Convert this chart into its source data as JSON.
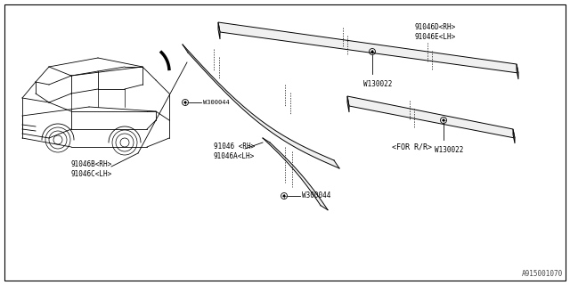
{
  "background_color": "#ffffff",
  "border_color": "#000000",
  "labels": {
    "top_molding": "91046D<RH>\n91046E<LH>",
    "top_bolt": "W130022",
    "left_molding": "91046B<RH>\n91046C<LH>",
    "left_bolt": "W300044",
    "mid_molding": "91046 <RH>\n91046A<LH>",
    "mid_bolt": "W300044",
    "right_bolt": "W130022",
    "for_rr": "<FOR R/R>",
    "ref_num": "A915001070"
  },
  "fig_width": 6.4,
  "fig_height": 3.2,
  "dpi": 100
}
